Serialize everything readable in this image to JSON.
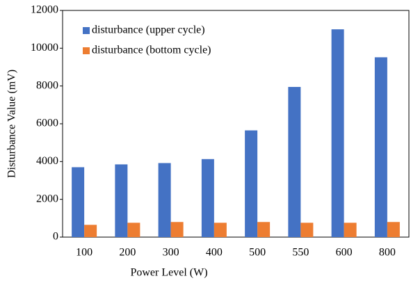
{
  "chart_data": {
    "type": "bar",
    "x_label": "Power Level (W)",
    "y_label": "Disturbance Value  (mV)",
    "categories": [
      "100",
      "200",
      "300",
      "400",
      "500",
      "550",
      "600",
      "800"
    ],
    "series": [
      {
        "name": "disturbance (upper cycle)",
        "color": "#4472c4",
        "values": [
          3700,
          3850,
          3920,
          4130,
          5650,
          7950,
          11000,
          9520
        ]
      },
      {
        "name": "disturbance (bottom cycle)",
        "color": "#ed7d31",
        "values": [
          650,
          760,
          800,
          760,
          800,
          760,
          760,
          800
        ]
      }
    ],
    "ylim": [
      0,
      12000
    ],
    "yticks": [
      0,
      2000,
      4000,
      6000,
      8000,
      10000,
      12000
    ],
    "legend": "upper-left",
    "grid": false
  }
}
